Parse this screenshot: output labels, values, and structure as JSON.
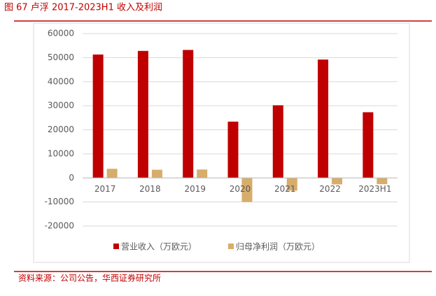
{
  "chart_data": {
    "type": "bar",
    "title": "图 67 卢浮 2017-2023H1 收入及利润",
    "source": "资料来源：公司公告，华西证券研究所",
    "categories": [
      "2017",
      "2018",
      "2019",
      "2020",
      "2021",
      "2022",
      "2023H1"
    ],
    "series": [
      {
        "name": "营业收入（万欧元）",
        "color": "#c00000",
        "values": [
          51300,
          52800,
          53200,
          23400,
          30200,
          49200,
          27300
        ]
      },
      {
        "name": "归母净利润（万欧元）",
        "color": "#d6ad6b",
        "values": [
          3800,
          3400,
          3500,
          -10000,
          -5300,
          -2700,
          -2600
        ]
      }
    ],
    "ylim": [
      -20000,
      60000
    ],
    "yticks": [
      -20000,
      -10000,
      0,
      10000,
      20000,
      30000,
      40000,
      50000,
      60000
    ],
    "grid": true
  }
}
